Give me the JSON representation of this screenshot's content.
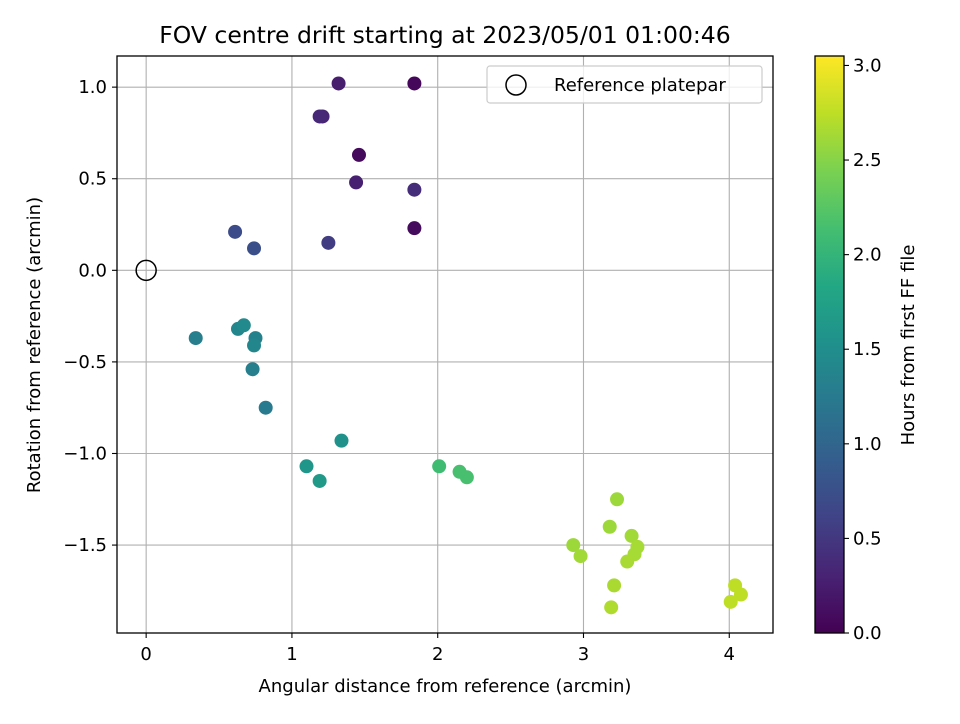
{
  "chart_data": {
    "type": "scatter",
    "title": "FOV centre drift starting at 2023/05/01 01:00:46",
    "xlabel": "Angular distance from reference (arcmin)",
    "ylabel": "Rotation from reference (arcmin)",
    "xlim": [
      -0.2,
      4.3
    ],
    "ylim": [
      -1.98,
      1.17
    ],
    "xticks": [
      0,
      1,
      2,
      3,
      4
    ],
    "xtick_labels": [
      "0",
      "1",
      "2",
      "3",
      "4"
    ],
    "yticks": [
      1.0,
      0.5,
      0.0,
      -0.5,
      -1.0,
      -1.5
    ],
    "ytick_labels": [
      "1.0",
      "0.5",
      "0.0",
      "−0.5",
      "−1.0",
      "−1.5"
    ],
    "grid": true,
    "legend": {
      "placement": "top-right",
      "entries": [
        {
          "label": "Reference platepar",
          "marker": "open-circle"
        }
      ]
    },
    "reference_point": {
      "x": 0.0,
      "y": 0.0
    },
    "colorbar": {
      "label": "Hours from first FF file",
      "colormap": "viridis",
      "range": [
        0.0,
        3.05
      ],
      "ticks": [
        0.0,
        0.5,
        1.0,
        1.5,
        2.0,
        2.5,
        3.0
      ],
      "tick_labels": [
        "0.0",
        "0.5",
        "1.0",
        "1.5",
        "2.0",
        "2.5",
        "3.0"
      ]
    },
    "points": [
      {
        "x": 1.84,
        "y": 1.02,
        "hours": 0.05
      },
      {
        "x": 1.46,
        "y": 0.63,
        "hours": 0.08
      },
      {
        "x": 1.84,
        "y": 0.23,
        "hours": 0.1
      },
      {
        "x": 1.32,
        "y": 1.02,
        "hours": 0.25
      },
      {
        "x": 1.21,
        "y": 0.84,
        "hours": 0.32
      },
      {
        "x": 1.19,
        "y": 0.84,
        "hours": 0.35
      },
      {
        "x": 1.44,
        "y": 0.48,
        "hours": 0.28
      },
      {
        "x": 1.84,
        "y": 0.44,
        "hours": 0.4
      },
      {
        "x": 1.25,
        "y": 0.15,
        "hours": 0.55
      },
      {
        "x": 0.61,
        "y": 0.21,
        "hours": 0.7
      },
      {
        "x": 0.74,
        "y": 0.12,
        "hours": 0.75
      },
      {
        "x": 0.34,
        "y": -0.37,
        "hours": 1.3
      },
      {
        "x": 0.63,
        "y": -0.32,
        "hours": 1.4
      },
      {
        "x": 0.67,
        "y": -0.3,
        "hours": 1.45
      },
      {
        "x": 0.75,
        "y": -0.37,
        "hours": 1.35
      },
      {
        "x": 0.74,
        "y": -0.41,
        "hours": 1.4
      },
      {
        "x": 0.73,
        "y": -0.54,
        "hours": 1.3
      },
      {
        "x": 0.82,
        "y": -0.75,
        "hours": 1.25
      },
      {
        "x": 1.34,
        "y": -0.93,
        "hours": 1.55
      },
      {
        "x": 1.1,
        "y": -1.07,
        "hours": 1.6
      },
      {
        "x": 1.19,
        "y": -1.15,
        "hours": 1.65
      },
      {
        "x": 2.01,
        "y": -1.07,
        "hours": 2.1
      },
      {
        "x": 2.15,
        "y": -1.1,
        "hours": 2.15
      },
      {
        "x": 2.2,
        "y": -1.13,
        "hours": 2.15
      },
      {
        "x": 3.23,
        "y": -1.25,
        "hours": 2.6
      },
      {
        "x": 3.18,
        "y": -1.4,
        "hours": 2.6
      },
      {
        "x": 2.93,
        "y": -1.5,
        "hours": 2.6
      },
      {
        "x": 2.98,
        "y": -1.56,
        "hours": 2.62
      },
      {
        "x": 3.33,
        "y": -1.45,
        "hours": 2.62
      },
      {
        "x": 3.37,
        "y": -1.51,
        "hours": 2.64
      },
      {
        "x": 3.35,
        "y": -1.55,
        "hours": 2.64
      },
      {
        "x": 3.3,
        "y": -1.59,
        "hours": 2.65
      },
      {
        "x": 3.21,
        "y": -1.72,
        "hours": 2.66
      },
      {
        "x": 3.19,
        "y": -1.84,
        "hours": 2.68
      },
      {
        "x": 4.04,
        "y": -1.72,
        "hours": 2.75
      },
      {
        "x": 4.08,
        "y": -1.77,
        "hours": 2.75
      },
      {
        "x": 4.01,
        "y": -1.81,
        "hours": 2.75
      }
    ]
  }
}
